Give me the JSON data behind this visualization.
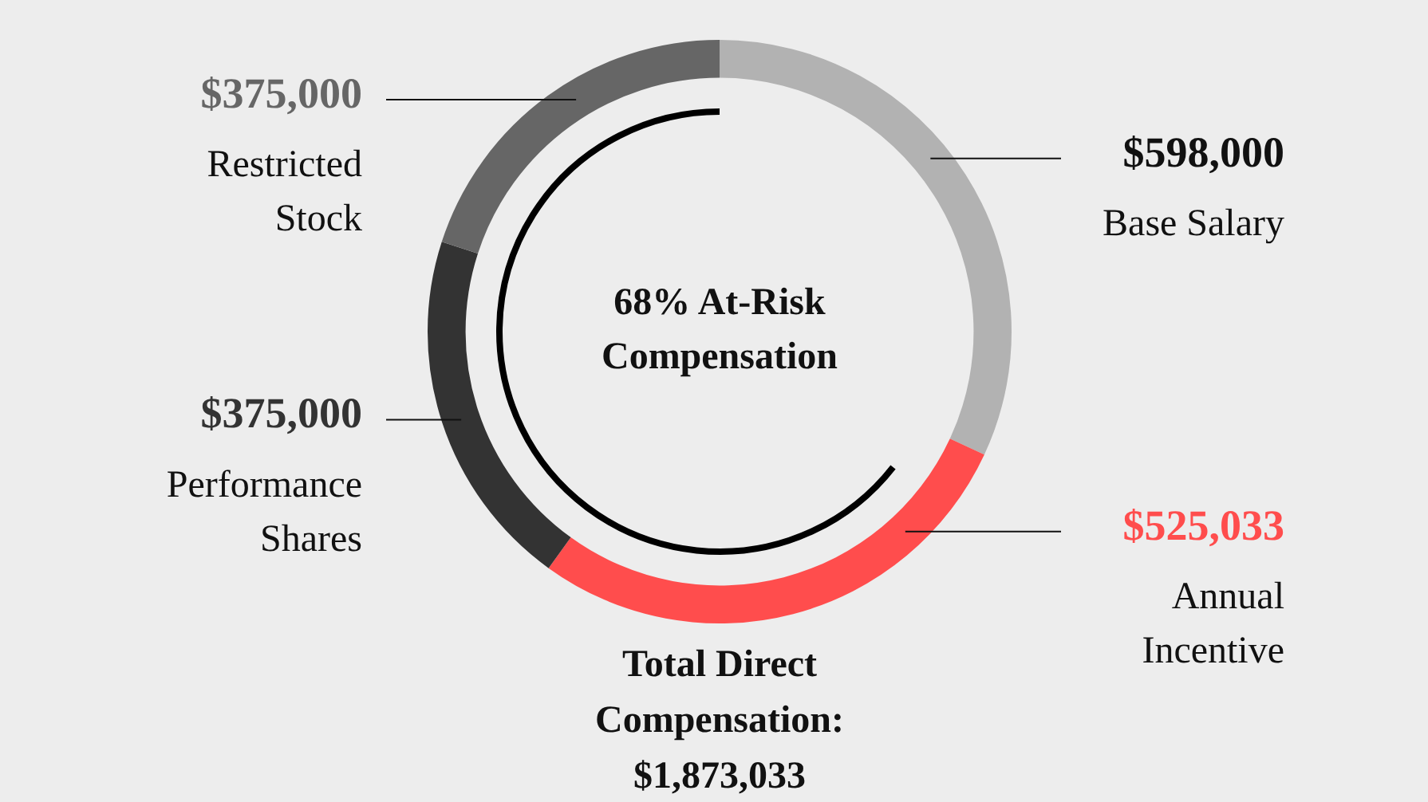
{
  "chart_data": {
    "type": "donut",
    "categories": [
      "Base Salary",
      "Annual Incentive",
      "Performance Shares",
      "Restricted Stock"
    ],
    "values": [
      598000,
      525033,
      375000,
      375000
    ],
    "colors": [
      "#b2b2b2",
      "#ff4d4d",
      "#333333",
      "#666666"
    ],
    "value_labels": [
      "$598,000",
      "$525,033",
      "$375,000",
      "$375,000"
    ],
    "legend": false,
    "annotations": [
      "68% At-Risk Compensation",
      "Total Direct Compensation: $1,873,033"
    ]
  }
}
